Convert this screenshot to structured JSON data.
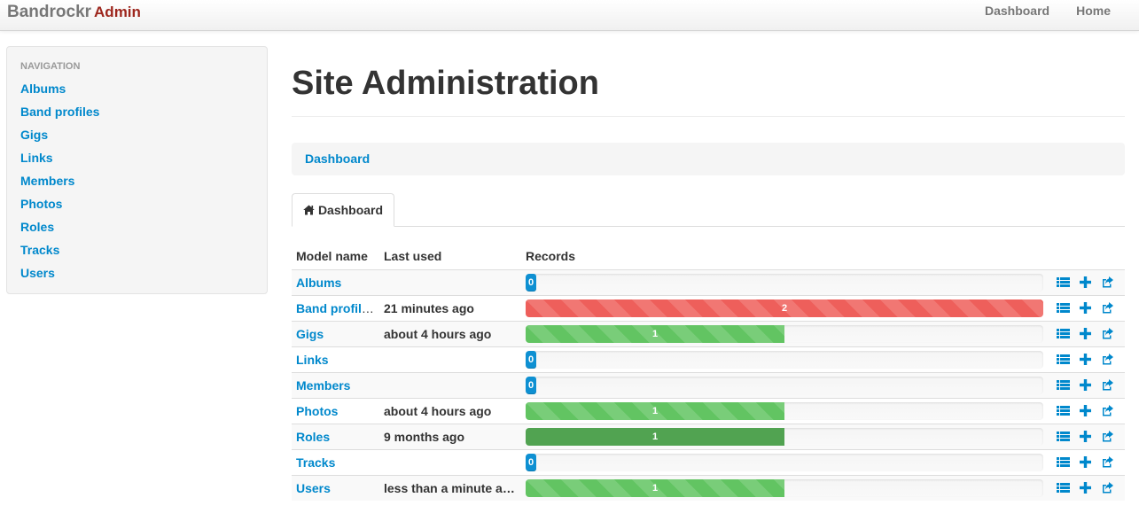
{
  "navbar": {
    "brand": "Bandrockr",
    "brand_suffix": "Admin",
    "links": [
      "Dashboard",
      "Home"
    ]
  },
  "sidebar": {
    "header": "Navigation",
    "items": [
      "Albums",
      "Band profiles",
      "Gigs",
      "Links",
      "Members",
      "Photos",
      "Roles",
      "Tracks",
      "Users"
    ]
  },
  "main": {
    "title": "Site Administration",
    "breadcrumb": "Dashboard",
    "tab": "Dashboard",
    "tab_icon": "home-icon",
    "table": {
      "headers": [
        "Model name",
        "Last used",
        "Records"
      ],
      "max_records": 2,
      "rows": [
        {
          "model": "Albums",
          "last_used": "",
          "records": 0,
          "style": "zero"
        },
        {
          "model": "Band profiles",
          "last_used": "21 minutes ago",
          "records": 2,
          "style": "danger"
        },
        {
          "model": "Gigs",
          "last_used": "about 4 hours ago",
          "records": 1,
          "style": "success"
        },
        {
          "model": "Links",
          "last_used": "",
          "records": 0,
          "style": "zero"
        },
        {
          "model": "Members",
          "last_used": "",
          "records": 0,
          "style": "zero"
        },
        {
          "model": "Photos",
          "last_used": "about 4 hours ago",
          "records": 1,
          "style": "success"
        },
        {
          "model": "Roles",
          "last_used": "9 months ago",
          "records": 1,
          "style": "solid"
        },
        {
          "model": "Tracks",
          "last_used": "",
          "records": 0,
          "style": "zero"
        },
        {
          "model": "Users",
          "last_used": "less than a minute ago",
          "records": 1,
          "style": "success"
        }
      ],
      "row_action_icons": [
        "list-icon",
        "plus-icon",
        "export-icon"
      ]
    }
  },
  "colors": {
    "link": "#0088cc",
    "brand_admin": "#9d261d",
    "zero_badge": "#0e90d2",
    "danger": "#ee5f5b",
    "success": "#62c462",
    "success_solid": "#51a351"
  }
}
